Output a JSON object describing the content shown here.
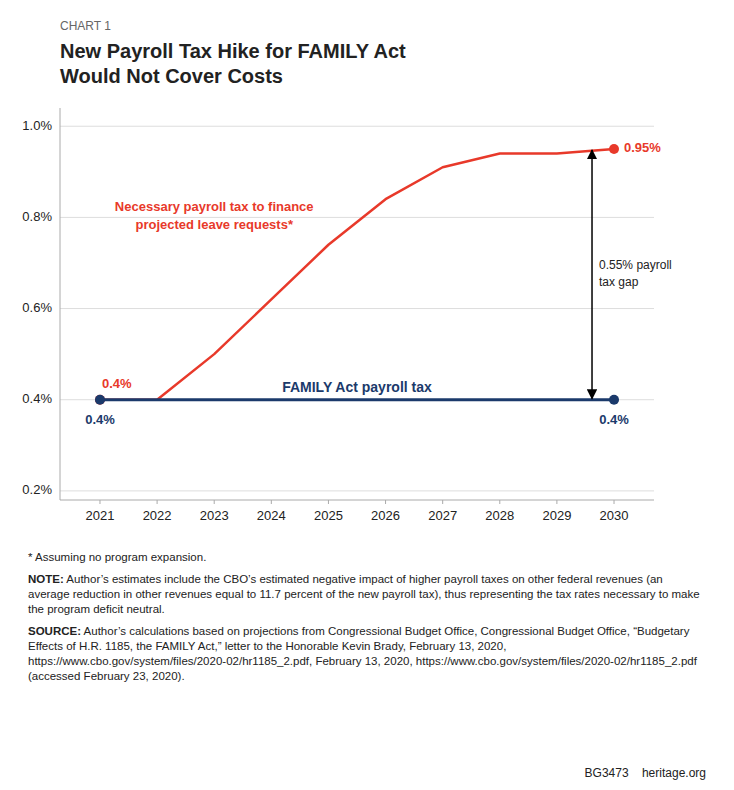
{
  "chart_data": {
    "type": "line",
    "chart_label": "CHART 1",
    "title": [
      "New Payroll Tax Hike for FAMILY Act",
      "Would Not Cover Costs"
    ],
    "series": [
      {
        "label": [
          "Necessary payroll tax to finance",
          "projected leave requests*"
        ],
        "color": "#E8392A",
        "x": [
          2021,
          2022,
          2023,
          2024,
          2025,
          2026,
          2027,
          2028,
          2029,
          2030
        ],
        "values": [
          0.4,
          0.4,
          0.5,
          0.62,
          0.74,
          0.84,
          0.91,
          0.94,
          0.94,
          0.95
        ],
        "value_labels": [
          "0.4%",
          null,
          null,
          null,
          null,
          null,
          null,
          null,
          null,
          "0.95%"
        ]
      },
      {
        "label": "FAMILY Act payroll tax",
        "color": "#1B3A6B",
        "x": [
          2021,
          2030
        ],
        "values": [
          0.4,
          0.4
        ],
        "value_labels": [
          "0.4%",
          "0.4%"
        ]
      }
    ],
    "annotations": [
      {
        "text": [
          "0.55% payroll",
          "tax gap"
        ]
      }
    ],
    "xlim": [
      2020.3,
      2030.7
    ],
    "xticks": [
      2021,
      2022,
      2023,
      2024,
      2025,
      2026,
      2027,
      2028,
      2029,
      2030
    ],
    "ylim": [
      0.18,
      1.04
    ],
    "yticks": [
      {
        "value": 0.2,
        "label": "0.2%"
      },
      {
        "value": 0.4,
        "label": "0.4%"
      },
      {
        "value": 0.6,
        "label": "0.6%"
      },
      {
        "value": 0.8,
        "label": "0.8%"
      },
      {
        "value": 1.0,
        "label": "1.0%"
      }
    ],
    "grid": true,
    "footnotes": [
      {
        "text": "* Assuming no program expansion."
      },
      {
        "label": "NOTE:",
        "text": " Author’s estimates include the CBO’s estimated negative impact of higher payroll taxes on other federal revenues (an average reduction in other revenues equal to 11.7 percent of the new payroll tax), thus representing the tax rates necessary to make the program deficit neutral."
      },
      {
        "label": "SOURCE:",
        "text": " Author’s calculations based on projections from Congressional Budget Office, Congressional Budget Office, “Budgetary Effects of H.R. 1185, the FAMILY Act,” letter to the Honorable Kevin Brady, February 13, 2020, https://www.cbo.gov/system/files/2020-02/hr1185_2.pdf, February 13, 2020, https://www.cbo.gov/system/files/2020-02/hr1185_2.pdf (accessed February 23, 2020)."
      }
    ],
    "footer": "BG3473    heritage.org"
  }
}
